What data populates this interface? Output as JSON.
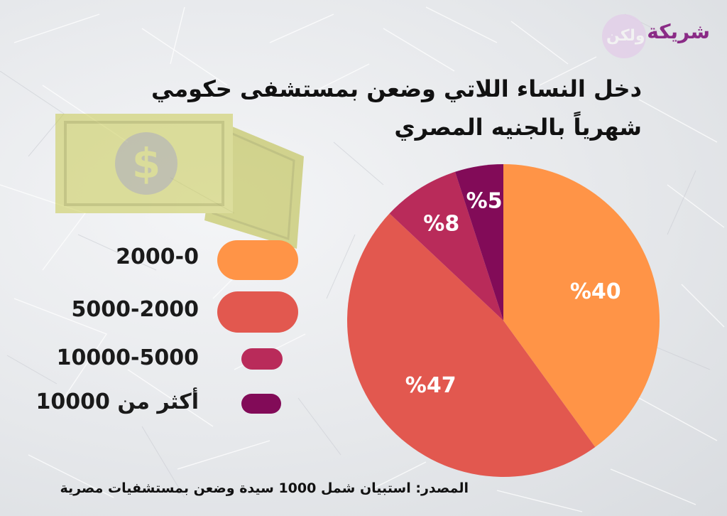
{
  "logo": {
    "text_main": "شريكة",
    "text_secondary": "ولكن"
  },
  "title": {
    "line1": "دخل النساء اللاتي وضعن بمستشفى حكومي",
    "line2": "شهرياً بالجنيه المصري"
  },
  "money_icon": "dollar-bill-icon",
  "chart_data": {
    "type": "pie",
    "slices": [
      {
        "label": "2000-0",
        "value": 40,
        "display": "%40",
        "color": "#ff9447"
      },
      {
        "label": "5000-2000",
        "value": 47,
        "display": "%47",
        "color": "#e2584f"
      },
      {
        "label": "10000-5000",
        "value": 8,
        "display": "%8",
        "color": "#b92b5a"
      },
      {
        "label": "أكثر من 10000",
        "value": 5,
        "display": "%5",
        "color": "#820b58"
      }
    ],
    "legend_position": "left",
    "start_angle_deg": 0,
    "direction": "clockwise"
  },
  "source": "المصدر: استبيان شمل 1000 سيدة وضعن بمستشفيات مصرية"
}
